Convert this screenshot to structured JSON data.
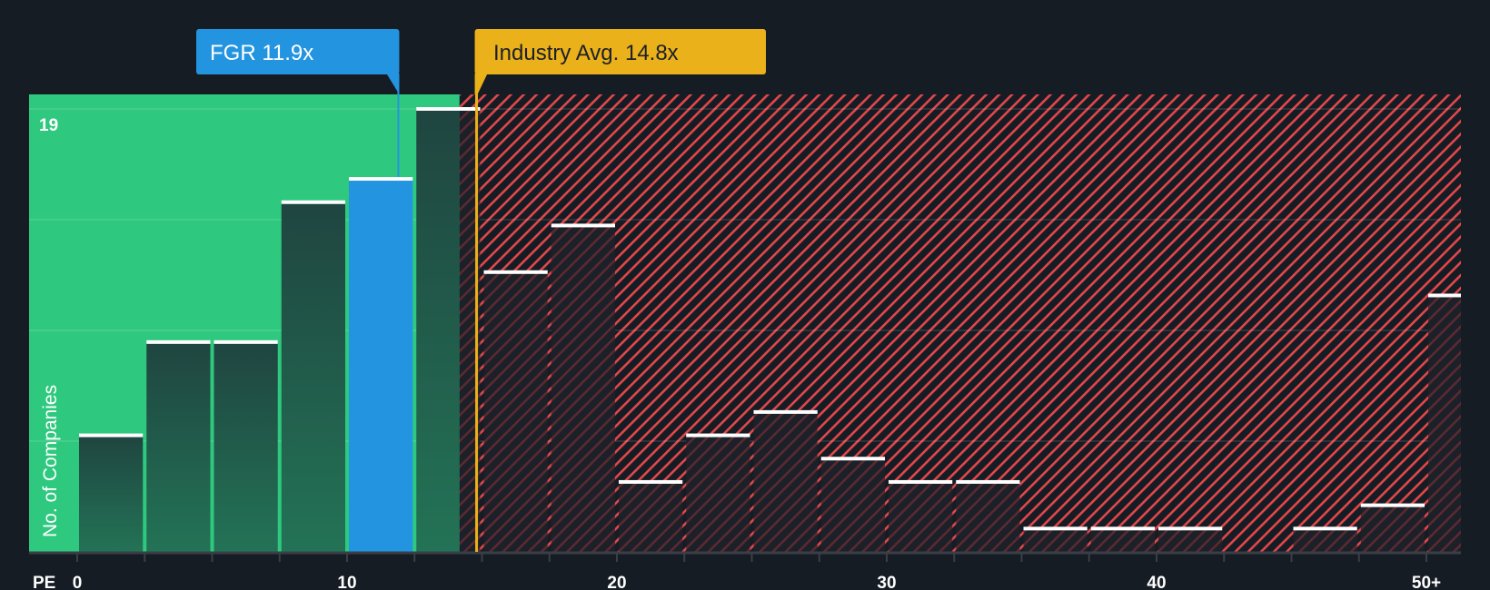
{
  "chart_data": {
    "type": "bar",
    "title": "",
    "xlabel": "PE",
    "ylabel": "No. of Companies",
    "ylim": [
      0,
      19
    ],
    "y_max_label": "19",
    "x_tick_labels": [
      "0",
      "10",
      "20",
      "30",
      "40",
      "50+"
    ],
    "x_tick_values": [
      0,
      10,
      20,
      30,
      40,
      50
    ],
    "bin_width": 2.5,
    "categories": [
      "0-2.5",
      "2.5-5",
      "5-7.5",
      "7.5-10",
      "10-12.5",
      "12.5-15",
      "15-17.5",
      "17.5-20",
      "20-22.5",
      "22.5-25",
      "25-27.5",
      "27.5-30",
      "30-32.5",
      "32.5-35",
      "35-37.5",
      "37.5-40",
      "40-42.5",
      "42.5-45",
      "45-47.5",
      "47.5-50",
      "50+"
    ],
    "values": [
      5,
      9,
      9,
      15,
      16,
      19,
      12,
      14,
      3,
      5,
      6,
      4,
      3,
      3,
      1,
      1,
      1,
      0,
      1,
      2,
      11
    ],
    "highlight_bin_index": 4,
    "grid": true,
    "gridline_values": [
      4.75,
      9.5,
      14.25,
      19
    ],
    "markers": [
      {
        "name": "FGR",
        "label": "FGR 11.9x",
        "value": 11.9,
        "color": "#2394df"
      },
      {
        "name": "Industry Avg.",
        "label": "Industry Avg. 14.8x",
        "value": 14.8,
        "color": "#ebb11a"
      }
    ],
    "zones": [
      {
        "name": "undervalued",
        "from": -1.8,
        "to": 14.17,
        "color": "#2ec97e"
      },
      {
        "name": "overvalued",
        "from": 14.17,
        "to": 51.3,
        "color": "#e2474b"
      }
    ],
    "legend": "none"
  },
  "colors": {
    "background": "#161c24",
    "green_zone": "#2ec97e",
    "bar_in_green": "#1f4a3f",
    "bar_in_red": "#1c2029",
    "bar_highlight": "#2394df",
    "hatch": "#e2474b",
    "fgr": "#2394df",
    "industry": "#ebb11a",
    "industry_text": "#1c2029",
    "axis": "#3a3f47",
    "bar_cap": "#ffffff"
  }
}
